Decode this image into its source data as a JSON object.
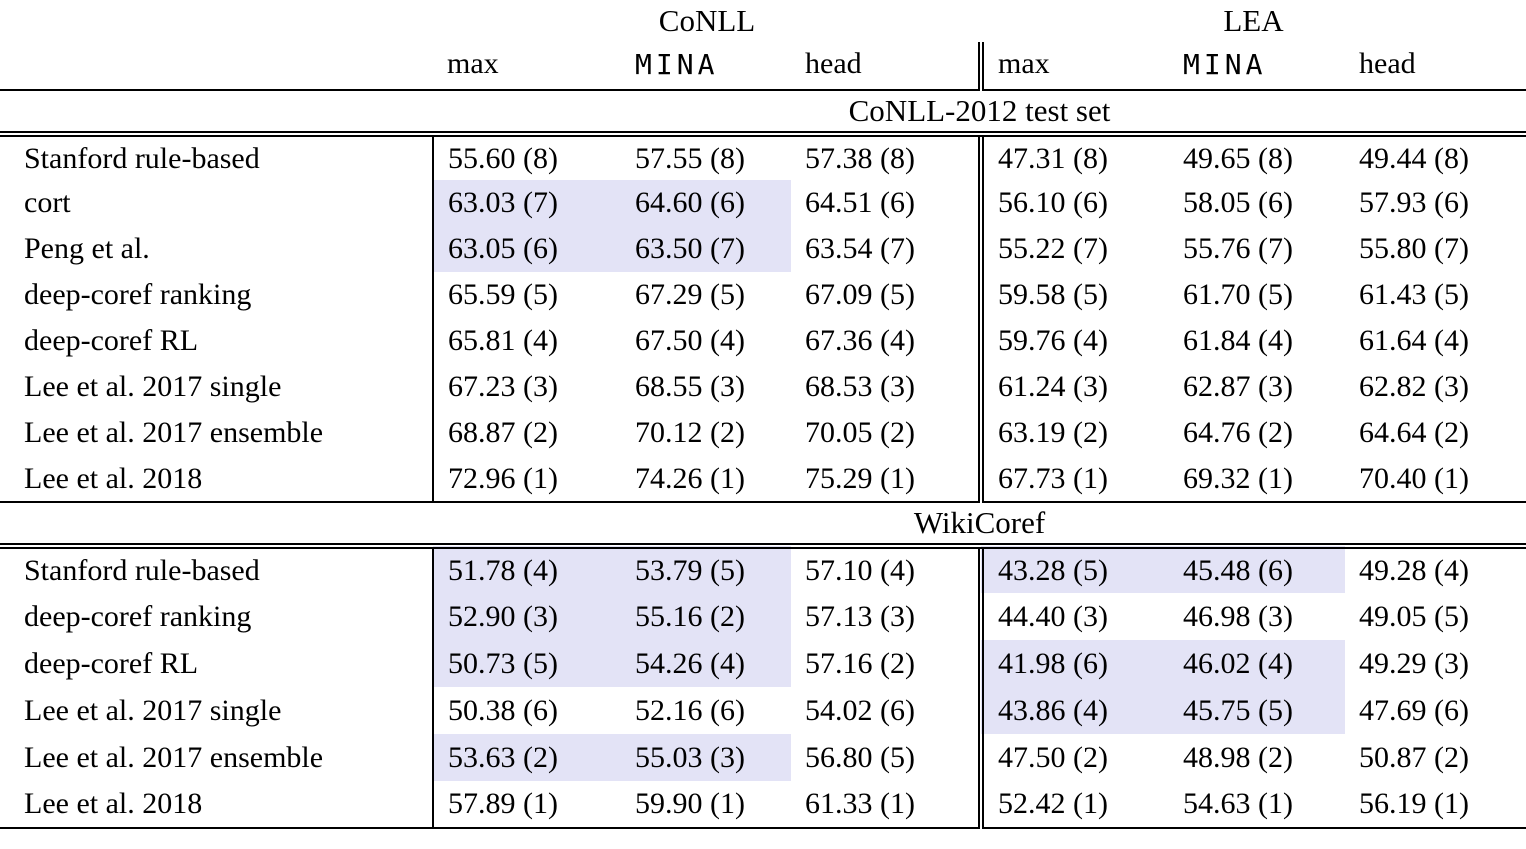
{
  "page": {
    "background": "#ffffff",
    "highlight_color": "#e3e3f6"
  },
  "header": {
    "groups": [
      {
        "label": "CoNLL"
      },
      {
        "label": "LEA"
      }
    ],
    "metrics": [
      "max",
      "MINA",
      "head",
      "max",
      "MINA",
      "head"
    ]
  },
  "sections": [
    {
      "title": "CoNLL-2012 test set",
      "rows": [
        {
          "label": "Stanford rule-based",
          "cells": [
            {
              "v": "55.60 (8)",
              "hl": false
            },
            {
              "v": "57.55 (8)",
              "hl": false
            },
            {
              "v": "57.38 (8)",
              "hl": false
            },
            {
              "v": "47.31 (8)",
              "hl": false
            },
            {
              "v": "49.65 (8)",
              "hl": false
            },
            {
              "v": "49.44 (8)",
              "hl": false
            }
          ]
        },
        {
          "label": "cort",
          "cells": [
            {
              "v": "63.03 (7)",
              "hl": true
            },
            {
              "v": "64.60 (6)",
              "hl": true
            },
            {
              "v": "64.51 (6)",
              "hl": false
            },
            {
              "v": "56.10 (6)",
              "hl": false
            },
            {
              "v": "58.05 (6)",
              "hl": false
            },
            {
              "v": "57.93 (6)",
              "hl": false
            }
          ]
        },
        {
          "label": "Peng et al.",
          "cells": [
            {
              "v": "63.05 (6)",
              "hl": true
            },
            {
              "v": "63.50 (7)",
              "hl": true
            },
            {
              "v": "63.54 (7)",
              "hl": false
            },
            {
              "v": "55.22 (7)",
              "hl": false
            },
            {
              "v": "55.76 (7)",
              "hl": false
            },
            {
              "v": "55.80 (7)",
              "hl": false
            }
          ]
        },
        {
          "label": "deep-coref ranking",
          "cells": [
            {
              "v": "65.59 (5)",
              "hl": false
            },
            {
              "v": "67.29 (5)",
              "hl": false
            },
            {
              "v": "67.09 (5)",
              "hl": false
            },
            {
              "v": "59.58 (5)",
              "hl": false
            },
            {
              "v": "61.70 (5)",
              "hl": false
            },
            {
              "v": "61.43 (5)",
              "hl": false
            }
          ]
        },
        {
          "label": "deep-coref RL",
          "cells": [
            {
              "v": "65.81 (4)",
              "hl": false
            },
            {
              "v": "67.50 (4)",
              "hl": false
            },
            {
              "v": "67.36 (4)",
              "hl": false
            },
            {
              "v": "59.76 (4)",
              "hl": false
            },
            {
              "v": "61.84 (4)",
              "hl": false
            },
            {
              "v": "61.64 (4)",
              "hl": false
            }
          ]
        },
        {
          "label": "Lee et al. 2017 single",
          "cells": [
            {
              "v": "67.23 (3)",
              "hl": false
            },
            {
              "v": "68.55 (3)",
              "hl": false
            },
            {
              "v": "68.53 (3)",
              "hl": false
            },
            {
              "v": "61.24 (3)",
              "hl": false
            },
            {
              "v": "62.87 (3)",
              "hl": false
            },
            {
              "v": "62.82 (3)",
              "hl": false
            }
          ]
        },
        {
          "label": "Lee et al. 2017 ensemble",
          "cells": [
            {
              "v": "68.87 (2)",
              "hl": false
            },
            {
              "v": "70.12 (2)",
              "hl": false
            },
            {
              "v": "70.05 (2)",
              "hl": false
            },
            {
              "v": "63.19 (2)",
              "hl": false
            },
            {
              "v": "64.76 (2)",
              "hl": false
            },
            {
              "v": "64.64 (2)",
              "hl": false
            }
          ]
        },
        {
          "label": "Lee et al. 2018",
          "cells": [
            {
              "v": "72.96 (1)",
              "hl": false
            },
            {
              "v": "74.26 (1)",
              "hl": false
            },
            {
              "v": "75.29 (1)",
              "hl": false
            },
            {
              "v": "67.73 (1)",
              "hl": false
            },
            {
              "v": "69.32 (1)",
              "hl": false
            },
            {
              "v": "70.40 (1)",
              "hl": false
            }
          ]
        }
      ]
    },
    {
      "title": "WikiCoref",
      "rows": [
        {
          "label": "Stanford rule-based",
          "cells": [
            {
              "v": "51.78 (4)",
              "hl": true
            },
            {
              "v": "53.79 (5)",
              "hl": true
            },
            {
              "v": "57.10 (4)",
              "hl": false
            },
            {
              "v": "43.28 (5)",
              "hl": true
            },
            {
              "v": "45.48 (6)",
              "hl": true
            },
            {
              "v": "49.28 (4)",
              "hl": false
            }
          ]
        },
        {
          "label": "deep-coref ranking",
          "cells": [
            {
              "v": "52.90 (3)",
              "hl": true
            },
            {
              "v": "55.16 (2)",
              "hl": true
            },
            {
              "v": "57.13 (3)",
              "hl": false
            },
            {
              "v": "44.40 (3)",
              "hl": false
            },
            {
              "v": "46.98 (3)",
              "hl": false
            },
            {
              "v": "49.05 (5)",
              "hl": false
            }
          ]
        },
        {
          "label": "deep-coref RL",
          "cells": [
            {
              "v": "50.73 (5)",
              "hl": true
            },
            {
              "v": "54.26 (4)",
              "hl": true
            },
            {
              "v": "57.16 (2)",
              "hl": false
            },
            {
              "v": "41.98 (6)",
              "hl": true
            },
            {
              "v": "46.02 (4)",
              "hl": true
            },
            {
              "v": "49.29 (3)",
              "hl": false
            }
          ]
        },
        {
          "label": "Lee et al. 2017 single",
          "cells": [
            {
              "v": "50.38 (6)",
              "hl": false
            },
            {
              "v": "52.16 (6)",
              "hl": false
            },
            {
              "v": "54.02 (6)",
              "hl": false
            },
            {
              "v": "43.86 (4)",
              "hl": true
            },
            {
              "v": "45.75 (5)",
              "hl": true
            },
            {
              "v": "47.69 (6)",
              "hl": false
            }
          ]
        },
        {
          "label": "Lee et al. 2017 ensemble",
          "cells": [
            {
              "v": "53.63 (2)",
              "hl": true
            },
            {
              "v": "55.03 (3)",
              "hl": true
            },
            {
              "v": "56.80 (5)",
              "hl": false
            },
            {
              "v": "47.50 (2)",
              "hl": false
            },
            {
              "v": "48.98 (2)",
              "hl": false
            },
            {
              "v": "50.87 (2)",
              "hl": false
            }
          ]
        },
        {
          "label": "Lee et al. 2018",
          "cells": [
            {
              "v": "57.89 (1)",
              "hl": false
            },
            {
              "v": "59.90 (1)",
              "hl": false
            },
            {
              "v": "61.33 (1)",
              "hl": false
            },
            {
              "v": "52.42 (1)",
              "hl": false
            },
            {
              "v": "54.63 (1)",
              "hl": false
            },
            {
              "v": "56.19 (1)",
              "hl": false
            }
          ]
        }
      ]
    }
  ]
}
